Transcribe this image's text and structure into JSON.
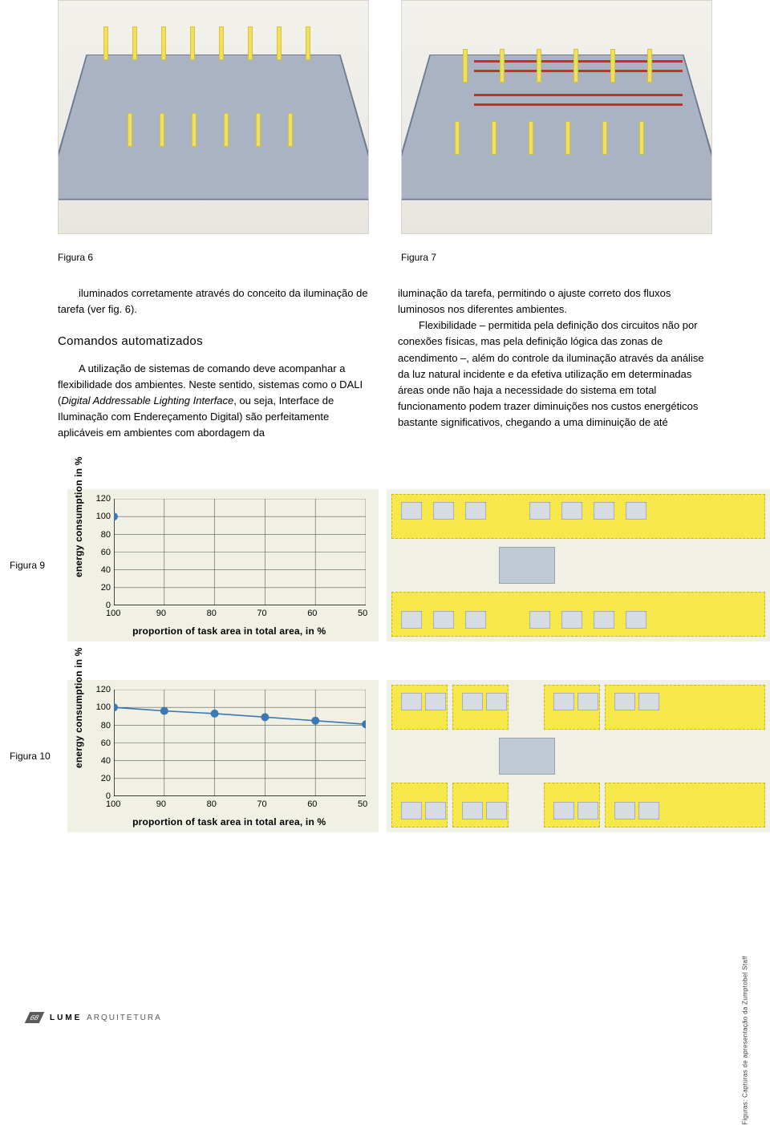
{
  "figure_labels": {
    "fig6": "Figura 6",
    "fig7": "Figura 7",
    "fig9": "Figura 9",
    "fig10": "Figura 10"
  },
  "left_column": {
    "p1": "iluminados corretamente através do conceito da iluminação de tarefa (ver fig. 6).",
    "subhead": "Comandos automatizados",
    "p2_part1": "A utilização de sistemas de comando deve acompanhar a flexibilidade dos ambientes. Neste sentido, sistemas como o DALI (",
    "p2_italic": "Digital Addressable Lighting Interface",
    "p2_part2": ", ou seja, Interface de Iluminação com Endereçamento Digital) são perfeitamente aplicáveis em ambientes com abordagem da"
  },
  "right_column": {
    "p1": "iluminação da tarefa, permitindo o ajuste correto dos fluxos luminosos nos diferentes ambientes.",
    "p2": "Flexibilidade – permitida pela definição dos circuitos não por conexões físicas, mas pela definição lógica das zonas de acendimento –, além do controle da iluminação através da análise da luz natural incidente e da efetiva utilização em determinadas áreas onde não haja a necessidade do sistema em total funcionamento podem trazer diminuições nos custos energéticos bastante significativos, chegando a uma diminuição de até"
  },
  "chart_common": {
    "y_label": "energy consumption in %",
    "x_label": "proportion of task area in total area, in %",
    "x_ticks": [
      100,
      90,
      80,
      70,
      60,
      50
    ],
    "y_ticks": [
      0,
      20,
      40,
      60,
      80,
      100,
      120
    ],
    "xlim": [
      100,
      50
    ],
    "ylim": [
      0,
      120
    ],
    "grid_color": "#5a5a5a",
    "background_color": "#f1f0e5",
    "marker_color": "#3b79b4",
    "line_color": "#3b79b4",
    "marker_size": 5
  },
  "chart9": {
    "type": "scatter",
    "x": [
      100
    ],
    "y": [
      100
    ]
  },
  "chart10": {
    "type": "line",
    "x": [
      100,
      90,
      80,
      70,
      60,
      50
    ],
    "y": [
      100,
      96,
      93,
      89,
      85,
      81
    ]
  },
  "floorplan": {
    "zone_color": "#f6e84a",
    "core_color": "#bfcad4",
    "bg": "#f1f0e5"
  },
  "footer": {
    "page_number": "68",
    "brand_bold": "LUME",
    "brand_light": "ARQUITETURA"
  },
  "credit": "Figuras: Capturas de apresentação da Zumptobel Staff"
}
